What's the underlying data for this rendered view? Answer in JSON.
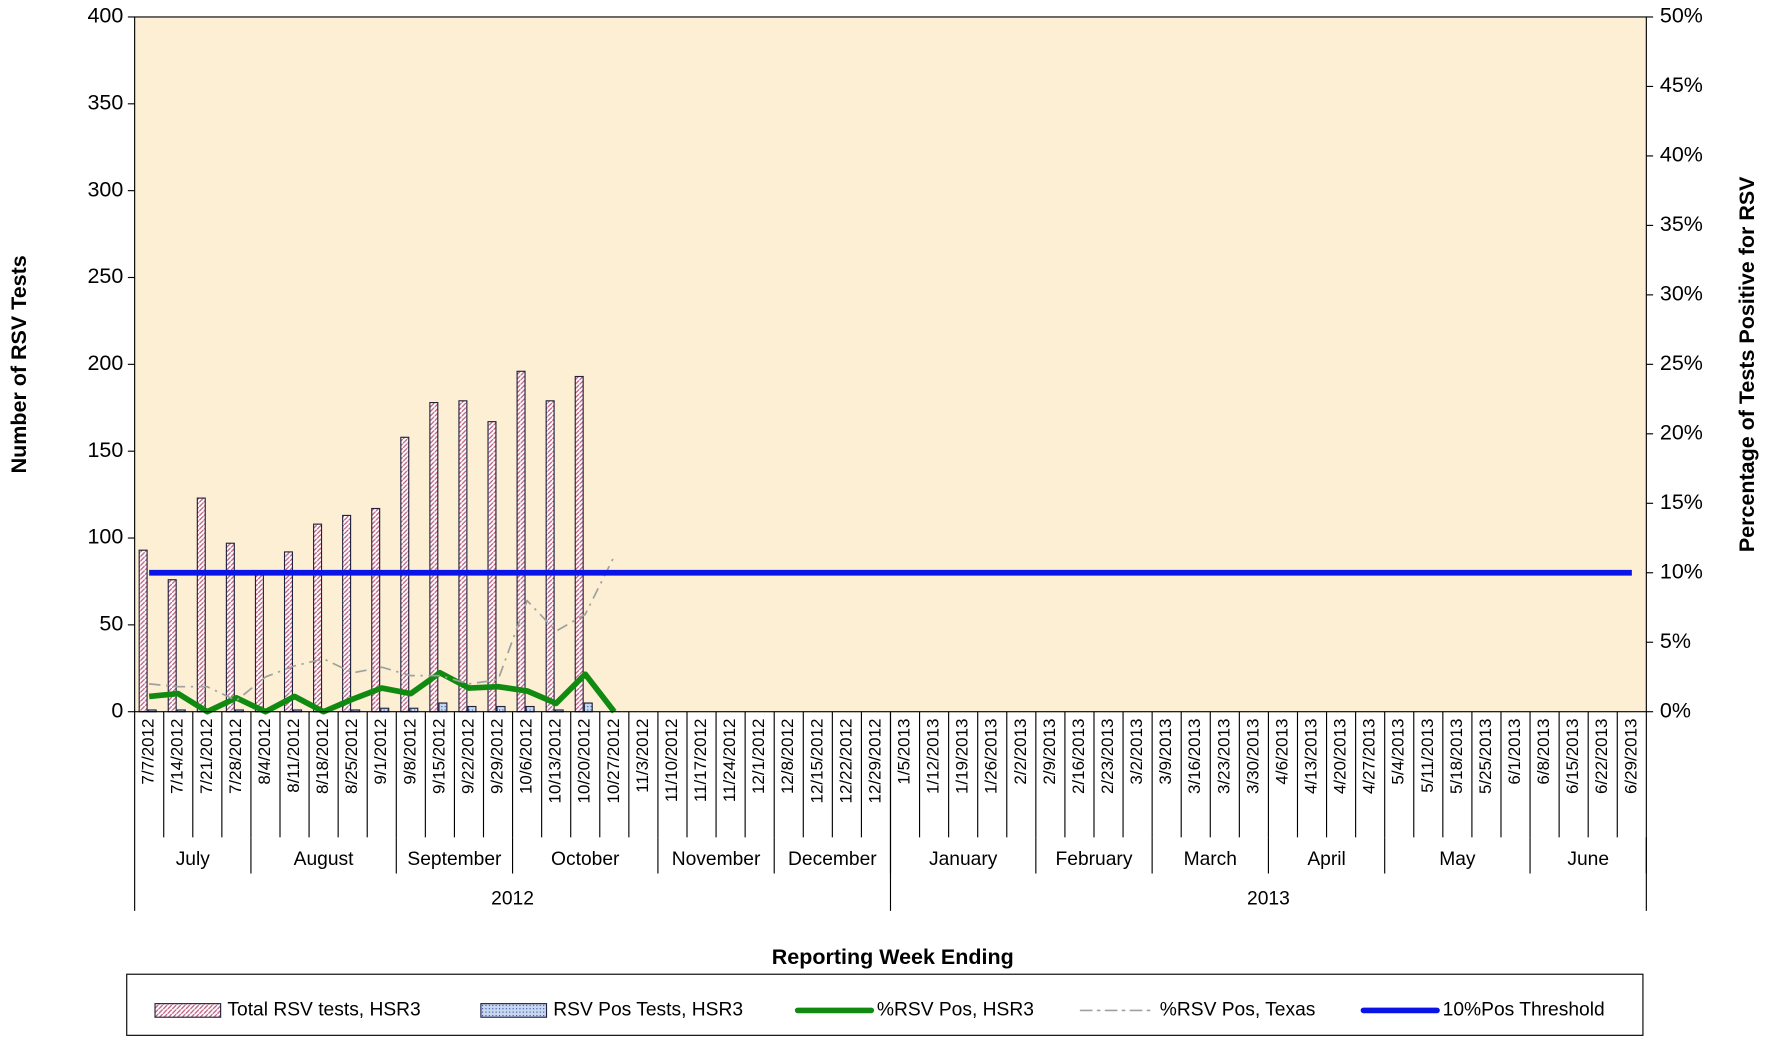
{
  "chart_data": {
    "type": "bar",
    "xlabel": "Reporting  Week Ending",
    "ylabel": "Number of RSV Tests",
    "y2label": "Percentage  of Tests Positive for RSV",
    "background": "#fcefd3",
    "categories": [
      "7/7/2012",
      "7/14/2012",
      "7/21/2012",
      "7/28/2012",
      "8/4/2012",
      "8/11/2012",
      "8/18/2012",
      "8/25/2012",
      "9/1/2012",
      "9/8/2012",
      "9/15/2012",
      "9/22/2012",
      "9/29/2012",
      "10/6/2012",
      "10/13/2012",
      "10/20/2012",
      "10/27/2012",
      "11/3/2012",
      "11/10/2012",
      "11/17/2012",
      "11/24/2012",
      "12/1/2012",
      "12/8/2012",
      "12/15/2012",
      "12/22/2012",
      "12/29/2012",
      "1/5/2013",
      "1/12/2013",
      "1/19/2013",
      "1/26/2013",
      "2/2/2013",
      "2/9/2013",
      "2/16/2013",
      "2/23/2013",
      "3/2/2013",
      "3/9/2013",
      "3/16/2013",
      "3/23/2013",
      "3/30/2013",
      "4/6/2013",
      "4/13/2013",
      "4/20/2013",
      "4/27/2013",
      "5/4/2013",
      "5/11/2013",
      "5/18/2013",
      "5/25/2013",
      "6/1/2013",
      "6/8/2013",
      "6/15/2013",
      "6/22/2013",
      "6/29/2013"
    ],
    "month_groups": [
      {
        "label": "July",
        "span": 4
      },
      {
        "label": "August",
        "span": 5
      },
      {
        "label": "September",
        "span": 4
      },
      {
        "label": "October",
        "span": 5
      },
      {
        "label": "November",
        "span": 4
      },
      {
        "label": "December",
        "span": 4
      },
      {
        "label": "January",
        "span": 5
      },
      {
        "label": "February",
        "span": 4
      },
      {
        "label": "March",
        "span": 4
      },
      {
        "label": "April",
        "span": 4
      },
      {
        "label": "May",
        "span": 5
      },
      {
        "label": "June",
        "span": 4
      }
    ],
    "year_groups": [
      {
        "label": "2012",
        "span": 26
      },
      {
        "label": "2013",
        "span": 26
      }
    ],
    "ylim": [
      0,
      400
    ],
    "yticks": [
      0,
      50,
      100,
      150,
      200,
      250,
      300,
      350,
      400
    ],
    "y2lim": [
      0,
      50
    ],
    "y2ticks": [
      {
        "value": 0,
        "label": "0%"
      },
      {
        "value": 5,
        "label": "5%"
      },
      {
        "value": 10,
        "label": "10%"
      },
      {
        "value": 15,
        "label": "15%"
      },
      {
        "value": 20,
        "label": "20%"
      },
      {
        "value": 25,
        "label": "25%"
      },
      {
        "value": 30,
        "label": "30%"
      },
      {
        "value": 35,
        "label": "35%"
      },
      {
        "value": 40,
        "label": "40%"
      },
      {
        "value": 45,
        "label": "45%"
      },
      {
        "value": 50,
        "label": "50%"
      }
    ],
    "series": [
      {
        "name": "Total RSV tests, HSR3",
        "kind": "bar",
        "style": "hatch",
        "color": "#d9a0b8",
        "values": [
          93,
          76,
          123,
          97,
          80,
          92,
          108,
          113,
          117,
          158,
          178,
          179,
          167,
          196,
          179,
          193,
          null,
          null,
          null,
          null,
          null,
          null,
          null,
          null,
          null,
          null,
          null,
          null,
          null,
          null,
          null,
          null,
          null,
          null,
          null,
          null,
          null,
          null,
          null,
          null,
          null,
          null,
          null,
          null,
          null,
          null,
          null,
          null,
          null,
          null,
          null,
          null
        ]
      },
      {
        "name": "RSV Pos Tests, HSR3",
        "kind": "bar",
        "style": "dots",
        "color": "#7f9fd0",
        "values": [
          1,
          1,
          0,
          1,
          0,
          1,
          0,
          1,
          2,
          2,
          5,
          3,
          3,
          3,
          1,
          5,
          null,
          null,
          null,
          null,
          null,
          null,
          null,
          null,
          null,
          null,
          null,
          null,
          null,
          null,
          null,
          null,
          null,
          null,
          null,
          null,
          null,
          null,
          null,
          null,
          null,
          null,
          null,
          null,
          null,
          null,
          null,
          null,
          null,
          null,
          null,
          null
        ]
      },
      {
        "name": "%RSV Pos, HSR3",
        "kind": "line",
        "axis": "y2",
        "color": "#108a10",
        "width": 5,
        "values": [
          1.1,
          1.3,
          0,
          1.0,
          0,
          1.1,
          0,
          0.9,
          1.7,
          1.3,
          2.8,
          1.7,
          1.8,
          1.5,
          0.6,
          2.7,
          0,
          null,
          null,
          null,
          null,
          null,
          null,
          null,
          null,
          null,
          null,
          null,
          null,
          null,
          null,
          null,
          null,
          null,
          null,
          null,
          null,
          null,
          null,
          null,
          null,
          null,
          null,
          null,
          null,
          null,
          null,
          null,
          null,
          null,
          null,
          null
        ]
      },
      {
        "name": "%RSV Pos, Texas",
        "kind": "line",
        "axis": "y2",
        "color": "#a0a0a0",
        "width": 1.5,
        "dash": "10 5 2 5",
        "values": [
          2.0,
          1.8,
          1.8,
          0.8,
          2.5,
          3.3,
          3.8,
          2.8,
          3.2,
          2.6,
          2.6,
          2.0,
          2.3,
          8.0,
          5.8,
          7.0,
          11.2,
          null,
          null,
          null,
          null,
          null,
          null,
          null,
          null,
          null,
          null,
          null,
          null,
          null,
          null,
          null,
          null,
          null,
          null,
          null,
          null,
          null,
          null,
          null,
          null,
          null,
          null,
          null,
          null,
          null,
          null,
          null,
          null,
          null,
          null,
          null
        ]
      },
      {
        "name": "10%Pos Threshold",
        "kind": "line",
        "axis": "y2",
        "color": "#0a14e6",
        "width": 5,
        "values": [
          10,
          10,
          10,
          10,
          10,
          10,
          10,
          10,
          10,
          10,
          10,
          10,
          10,
          10,
          10,
          10,
          10,
          10,
          10,
          10,
          10,
          10,
          10,
          10,
          10,
          10,
          10,
          10,
          10,
          10,
          10,
          10,
          10,
          10,
          10,
          10,
          10,
          10,
          10,
          10,
          10,
          10,
          10,
          10,
          10,
          10,
          10,
          10,
          10,
          10,
          10,
          10
        ]
      }
    ]
  }
}
